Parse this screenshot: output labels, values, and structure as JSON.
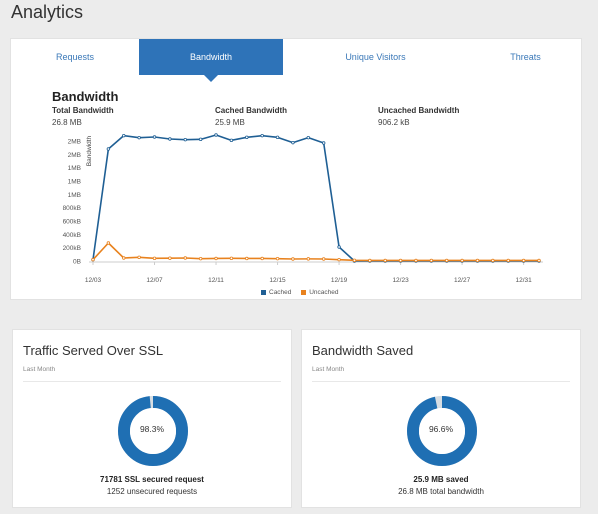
{
  "page": {
    "title": "Analytics"
  },
  "tabs": [
    {
      "label": "Requests"
    },
    {
      "label": "Bandwidth"
    },
    {
      "label": "Unique Visitors"
    },
    {
      "label": "Threats"
    }
  ],
  "bandwidth": {
    "title": "Bandwidth",
    "stats": [
      {
        "label": "Total Bandwidth",
        "value": "26.8 MB"
      },
      {
        "label": "Cached Bandwidth",
        "value": "25.9 MB"
      },
      {
        "label": "Uncached Bandwidth",
        "value": "906.2 kB"
      }
    ]
  },
  "chart_data": {
    "type": "line",
    "title": "Bandwidth",
    "ylabel": "Bandwidth",
    "xlabel": "",
    "x_ticks": [
      "12/03",
      "12/07",
      "12/11",
      "12/15",
      "12/19",
      "12/23",
      "12/27",
      "12/31"
    ],
    "y_ticks": [
      "0B",
      "200kB",
      "400kB",
      "600kB",
      "800kB",
      "1MB",
      "1MB",
      "1MB",
      "2MB",
      "2MB"
    ],
    "y_tick_values_kB": [
      0,
      200,
      400,
      600,
      800,
      1000,
      1200,
      1400,
      1600,
      1800
    ],
    "ylim_kB": [
      0,
      1800
    ],
    "x": [
      "12/03",
      "12/04",
      "12/05",
      "12/06",
      "12/07",
      "12/08",
      "12/09",
      "12/10",
      "12/11",
      "12/12",
      "12/13",
      "12/14",
      "12/15",
      "12/16",
      "12/17",
      "12/18",
      "12/19",
      "12/20",
      "12/21",
      "12/22",
      "12/23",
      "12/24",
      "12/25",
      "12/26",
      "12/27",
      "12/28",
      "12/29",
      "12/30",
      "12/31",
      "01/01"
    ],
    "series": [
      {
        "name": "Cached",
        "color": "#1f5f94",
        "values_kB": [
          20,
          1680,
          1880,
          1850,
          1860,
          1830,
          1820,
          1825,
          1890,
          1810,
          1855,
          1880,
          1855,
          1775,
          1850,
          1770,
          210,
          0,
          0,
          0,
          0,
          0,
          0,
          0,
          0,
          0,
          0,
          0,
          0,
          0
        ]
      },
      {
        "name": "Uncached",
        "color": "#e8821e",
        "values_kB": [
          20,
          270,
          45,
          55,
          40,
          42,
          45,
          35,
          38,
          40,
          38,
          38,
          35,
          30,
          32,
          30,
          20,
          10,
          8,
          8,
          8,
          8,
          8,
          8,
          8,
          8,
          8,
          8,
          8,
          8
        ]
      }
    ],
    "legend_position": "bottom-center"
  },
  "ssl": {
    "title": "Traffic Served Over SSL",
    "subtitle": "Last Month",
    "percent_label": "98.3%",
    "percent": 98.3,
    "primary": "71781 SSL secured request",
    "secondary": "1252 unsecured requests",
    "colors": {
      "fill": "#1f6fb3",
      "rest": "#d8dee3"
    }
  },
  "saved": {
    "title": "Bandwidth Saved",
    "subtitle": "Last Month",
    "percent_label": "96.6%",
    "percent": 96.6,
    "primary": "25.9 MB saved",
    "secondary": "26.8 MB total bandwidth",
    "colors": {
      "fill": "#1f6fb3",
      "rest": "#d8dee3"
    }
  }
}
